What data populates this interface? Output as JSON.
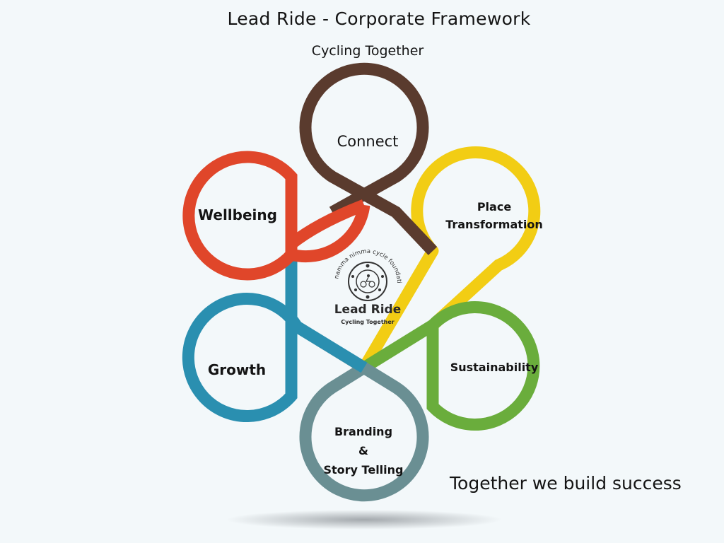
{
  "header": {
    "title": "Lead Ride - Corporate Framework",
    "subtitle": "Cycling Together"
  },
  "loops": [
    {
      "id": "connect",
      "label": "Connect",
      "color": "#5a3b2e"
    },
    {
      "id": "place",
      "label_line1": "Place",
      "label_line2": "Transformation",
      "color": "#f2cd14"
    },
    {
      "id": "sustainability",
      "label": "Sustainability",
      "color": "#6aad3c"
    },
    {
      "id": "branding",
      "label_line1": "Branding",
      "label_line2": "&",
      "label_line3": "Story Telling",
      "color": "#6a8f93"
    },
    {
      "id": "growth",
      "label": "Growth",
      "color": "#2a8fb0"
    },
    {
      "id": "wellbeing",
      "label": "Wellbeing",
      "color": "#e0462a"
    }
  ],
  "logo": {
    "arc_text": "namma nimma cycle foundation",
    "name": "Lead Ride",
    "tagline": "Cycling Together"
  },
  "footer": {
    "tagline": "Together we build success"
  }
}
